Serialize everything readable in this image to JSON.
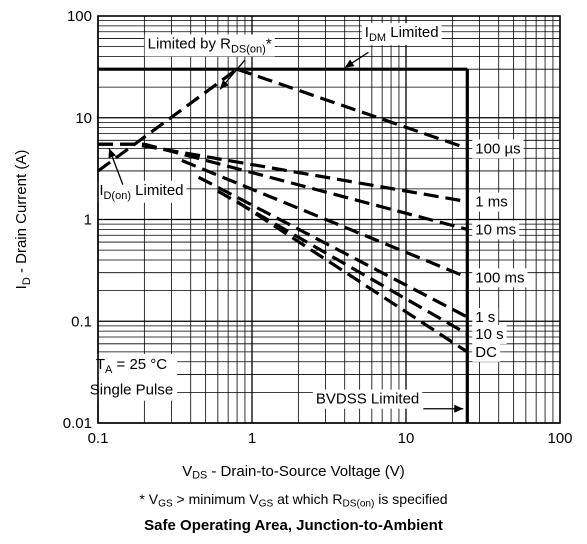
{
  "chart_data": {
    "type": "line",
    "title": "Safe Operating Area, Junction-to-Ambient",
    "xlabel": {
      "main": "V",
      "sub": "DS",
      "rest": " - Drain-to-Source Voltage (V)"
    },
    "ylabel": {
      "main": "I",
      "sub": "D",
      "rest": " - Drain Current (A)"
    },
    "x_scale": "log",
    "y_scale": "log",
    "xlim": [
      0.1,
      100
    ],
    "ylim": [
      0.01,
      100
    ],
    "x_ticks": [
      {
        "value": 0.1,
        "label": "0.1"
      },
      {
        "value": 1,
        "label": "1"
      },
      {
        "value": 10,
        "label": "10"
      },
      {
        "value": 100,
        "label": "100"
      }
    ],
    "y_ticks": [
      {
        "value": 0.01,
        "label": "0.01"
      },
      {
        "value": 0.1,
        "label": "0.1"
      },
      {
        "value": 1,
        "label": "1"
      },
      {
        "value": 10,
        "label": "10"
      },
      {
        "value": 100,
        "label": "100"
      }
    ],
    "grid": true,
    "limit_lines": [
      {
        "name": "IDM Limited",
        "style": "solid",
        "points": [
          [
            0.1,
            30
          ],
          [
            25,
            30
          ]
        ]
      },
      {
        "name": "BVDSS Limited",
        "style": "solid",
        "points": [
          [
            25,
            30
          ],
          [
            25,
            0.01
          ]
        ]
      }
    ],
    "rds_line": {
      "name": "Limited by RDS(on)",
      "style": "dashed",
      "points": [
        [
          0.1,
          3
        ],
        [
          0.8,
          30
        ]
      ]
    },
    "series": [
      {
        "name": "100 µs",
        "style": "dashed",
        "points": [
          [
            0.8,
            30
          ],
          [
            25,
            5
          ]
        ]
      },
      {
        "name": "1 ms",
        "style": "dashed",
        "points": [
          [
            0.1,
            5.5
          ],
          [
            0.17,
            5.5
          ],
          [
            25,
            1.5
          ]
        ]
      },
      {
        "name": "10 ms",
        "style": "dashed",
        "points": [
          [
            0.1,
            5.5
          ],
          [
            0.2,
            5.5
          ],
          [
            25,
            0.8
          ]
        ]
      },
      {
        "name": "100 ms",
        "style": "dashed",
        "points": [
          [
            0.35,
            3.8
          ],
          [
            25,
            0.27
          ]
        ]
      },
      {
        "name": "1 s",
        "style": "dashed",
        "points": [
          [
            0.45,
            2.6
          ],
          [
            25,
            0.11
          ]
        ]
      },
      {
        "name": "10 s",
        "style": "dashed",
        "points": [
          [
            0.6,
            1.9
          ],
          [
            25,
            0.075
          ]
        ]
      },
      {
        "name": "DC",
        "style": "dashed",
        "points": [
          [
            0.8,
            1.5
          ],
          [
            25,
            0.05
          ]
        ]
      }
    ],
    "annotations": [
      {
        "id": "rds",
        "main": "Limited by R",
        "sub": "DS(on)",
        "rest": "*"
      },
      {
        "id": "idm",
        "main": "I",
        "sub": "DM",
        "rest": " Limited"
      },
      {
        "id": "idon",
        "main": "I",
        "sub": "D(on)",
        "rest": " Limited"
      },
      {
        "id": "ta",
        "main": "T",
        "sub": "A",
        "rest": " = 25 °C"
      },
      {
        "id": "pulse",
        "text": "Single Pulse"
      },
      {
        "id": "bvdss",
        "text": "BVDSS Limited"
      }
    ]
  },
  "footnote": {
    "star": "* ",
    "v1": "V",
    "s1": "GS",
    "t1": " > minimum ",
    "v2": "V",
    "s2": "GS",
    "t2": " at which ",
    "v3": "R",
    "s3": "DS(on)",
    "t3": " is specified"
  }
}
